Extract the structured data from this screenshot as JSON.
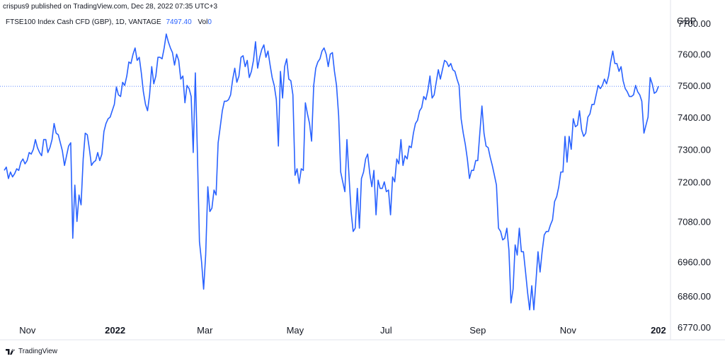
{
  "header": {
    "publish_line": "crispus9 published on TradingView.com, Dec 28, 2022 07:35 UTC+3"
  },
  "legend": {
    "symbol": "FTSE100 Index Cash CFD (GBP), 1D, VANTAGE",
    "last_value": "7497.40",
    "vol_label": "Vol",
    "vol_value": "0"
  },
  "currency": "GBP",
  "footer": {
    "brand": "TradingView"
  },
  "colors": {
    "line": "#2962ff",
    "price_line": "#2962ff",
    "text": "#131722",
    "axis_border": "#e0e3eb"
  },
  "chart_data": {
    "type": "line",
    "title": "",
    "series": [
      {
        "values": [
          7235,
          7245,
          7210,
          7230,
          7215,
          7225,
          7240,
          7235,
          7260,
          7270,
          7255,
          7265,
          7290,
          7285,
          7300,
          7330,
          7305,
          7290,
          7280,
          7330,
          7330,
          7290,
          7305,
          7330,
          7380,
          7350,
          7345,
          7320,
          7295,
          7250,
          7280,
          7310,
          7320,
          7030,
          7190,
          7080,
          7160,
          7130,
          7270,
          7350,
          7345,
          7300,
          7250,
          7260,
          7265,
          7290,
          7265,
          7285,
          7355,
          7380,
          7395,
          7400,
          7420,
          7440,
          7495,
          7470,
          7465,
          7510,
          7500,
          7530,
          7575,
          7570,
          7600,
          7620,
          7580,
          7590,
          7540,
          7480,
          7440,
          7420,
          7470,
          7560,
          7505,
          7530,
          7590,
          7590,
          7585,
          7620,
          7665,
          7640,
          7620,
          7605,
          7565,
          7600,
          7580,
          7520,
          7530,
          7445,
          7500,
          7490,
          7465,
          7290,
          7540,
          7290,
          7020,
          6960,
          6880,
          6980,
          7185,
          7110,
          7120,
          7175,
          7160,
          7320,
          7370,
          7420,
          7450,
          7450,
          7455,
          7470,
          7520,
          7555,
          7510,
          7530,
          7590,
          7595,
          7560,
          7580,
          7525,
          7545,
          7580,
          7640,
          7555,
          7590,
          7615,
          7630,
          7590,
          7610,
          7565,
          7525,
          7500,
          7455,
          7310,
          7545,
          7460,
          7560,
          7585,
          7520,
          7515,
          7470,
          7220,
          7240,
          7195,
          7240,
          7235,
          7445,
          7410,
          7380,
          7325,
          7500,
          7555,
          7575,
          7585,
          7610,
          7620,
          7600,
          7560,
          7600,
          7605,
          7545,
          7500,
          7405,
          7230,
          7200,
          7170,
          7330,
          7220,
          7110,
          7050,
          7060,
          7180,
          7060,
          7210,
          7230,
          7270,
          7285,
          7225,
          7185,
          7235,
          7100,
          7205,
          7180,
          7180,
          7200,
          7170,
          7175,
          7100,
          7215,
          7200,
          7270,
          7255,
          7330,
          7250,
          7280,
          7270,
          7310,
          7305,
          7350,
          7380,
          7390,
          7420,
          7430,
          7465,
          7455,
          7485,
          7530,
          7460,
          7470,
          7510,
          7550,
          7520,
          7550,
          7580,
          7575,
          7560,
          7570,
          7550,
          7545,
          7520,
          7500,
          7395,
          7350,
          7315,
          7270,
          7210,
          7235,
          7235,
          7265,
          7265,
          7350,
          7435,
          7350,
          7310,
          7305,
          7275,
          7250,
          7220,
          7190,
          7060,
          7050,
          7025,
          7030,
          7060,
          6995,
          6840,
          6880,
          7010,
          6980,
          7060,
          6990,
          6990,
          6930,
          6870,
          6820,
          6890,
          6820,
          6900,
          6990,
          6930,
          6990,
          7040,
          7050,
          7050,
          7070,
          7085,
          7140,
          7155,
          7185,
          7230,
          7230,
          7340,
          7260,
          7340,
          7300,
          7395,
          7370,
          7375,
          7420,
          7360,
          7340,
          7350,
          7400,
          7410,
          7440,
          7440,
          7470,
          7500,
          7490,
          7500,
          7520,
          7505,
          7530,
          7575,
          7610,
          7570,
          7570,
          7545,
          7560,
          7515,
          7490,
          7480,
          7465,
          7465,
          7470,
          7500,
          7480,
          7470,
          7450,
          7350,
          7375,
          7400,
          7525,
          7505,
          7475,
          7480,
          7497.4
        ]
      }
    ],
    "x_ticks": [
      {
        "label": "Nov",
        "pos": 0.035
      },
      {
        "label": "2022",
        "pos": 0.167,
        "bold": true
      },
      {
        "label": "Mar",
        "pos": 0.302
      },
      {
        "label": "May",
        "pos": 0.438
      },
      {
        "label": "Jul",
        "pos": 0.575
      },
      {
        "label": "Sep",
        "pos": 0.713
      },
      {
        "label": "Nov",
        "pos": 0.849
      },
      {
        "label": "202",
        "pos": 0.985,
        "bold": true
      }
    ],
    "y_ticks": [
      7700,
      7600,
      7500,
      7400,
      7300,
      7200,
      7080,
      6960,
      6860,
      6770
    ],
    "y_tick_labels": [
      "7700.00",
      "7600.00",
      "7500.00",
      "7400.00",
      "7300.00",
      "7200.00",
      "7080.00",
      "6960.00",
      "6860.00",
      "6770.00"
    ],
    "ylim": [
      6740,
      7730
    ],
    "last_price": 7497.4,
    "grid": false,
    "log_scale": true
  }
}
